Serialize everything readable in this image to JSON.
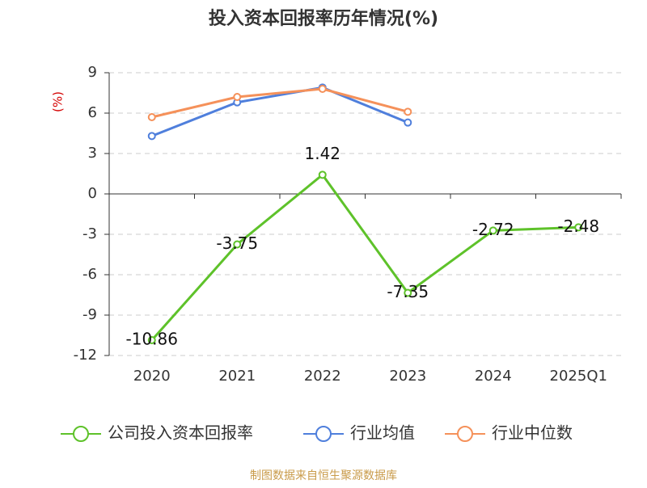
{
  "chart_data": {
    "type": "line",
    "title": "投入资本回报率历年情况(%)",
    "y_label": "(%)",
    "categories": [
      "2020",
      "2021",
      "2022",
      "2023",
      "2024",
      "2025Q1"
    ],
    "series": [
      {
        "name": "公司投入资本回报率",
        "color": "#5ec22a",
        "values": [
          -10.86,
          -3.75,
          1.42,
          -7.35,
          -2.72,
          -2.48
        ],
        "data_labels": true
      },
      {
        "name": "行业均值",
        "color": "#4f7fdc",
        "values": [
          4.3,
          6.8,
          7.9,
          5.3,
          null,
          null
        ]
      },
      {
        "name": "行业中位数",
        "color": "#f5915a",
        "values": [
          5.7,
          7.2,
          7.8,
          6.1,
          null,
          null
        ]
      }
    ],
    "ylim": [
      -12,
      9
    ],
    "yticks": [
      -12,
      -9,
      -6,
      -3,
      0,
      3,
      6,
      9
    ],
    "grid": true,
    "legend": "bottom",
    "source": "制图数据来自恒生聚源数据库"
  }
}
